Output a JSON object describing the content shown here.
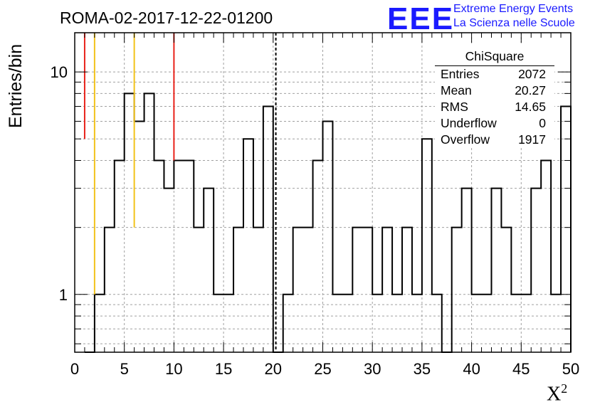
{
  "chart_data": {
    "type": "histogram",
    "title": "ROMA-02-2017-12-22-01200",
    "xlabel": "X",
    "xlabel_superscript": "2",
    "ylabel": "Entries/bin",
    "xlim": [
      0,
      50
    ],
    "ylim": [
      0.55,
      15
    ],
    "y_scale": "log",
    "grid": true,
    "x_ticks": [
      "0",
      "5",
      "10",
      "15",
      "20",
      "25",
      "30",
      "35",
      "40",
      "45",
      "50"
    ],
    "y_ticks": [
      "1",
      "10"
    ],
    "bin_width": 1,
    "bin_low_edges": [
      1,
      2,
      3,
      4,
      5,
      6,
      7,
      8,
      9,
      10,
      11,
      12,
      13,
      14,
      15,
      16,
      17,
      18,
      19,
      20,
      21,
      22,
      23,
      24,
      25,
      26,
      27,
      28,
      29,
      30,
      31,
      32,
      33,
      34,
      35,
      36,
      37,
      38,
      39,
      40,
      41,
      42,
      43,
      44,
      45,
      46,
      47,
      48,
      49
    ],
    "values": [
      0,
      1,
      2,
      4,
      8,
      6,
      8,
      4,
      3,
      4,
      4,
      2,
      3,
      1,
      1,
      2,
      5,
      2,
      7,
      0,
      1,
      2,
      2,
      4,
      6,
      1,
      1,
      2,
      2,
      1,
      2,
      1,
      2,
      1,
      5,
      1,
      0,
      2,
      3,
      1,
      1,
      3,
      2,
      1,
      1,
      3,
      4,
      1,
      7
    ],
    "vertical_lines": [
      {
        "x": 1,
        "y_from": 5,
        "color": "#e8221a",
        "style": "solid"
      },
      {
        "x": 2,
        "y_from": 1,
        "color": "#f2c21a",
        "style": "solid"
      },
      {
        "x": 6,
        "y_from": 2,
        "color": "#f2c21a",
        "style": "solid"
      },
      {
        "x": 10,
        "y_from": 4,
        "color": "#e8221a",
        "style": "solid"
      },
      {
        "x": 20.27,
        "y_from": 0,
        "color": "#000000",
        "style": "dashed"
      }
    ],
    "stats_box": {
      "title": "ChiSquare",
      "rows": [
        {
          "label": "Entries",
          "value": "2072"
        },
        {
          "label": "Mean",
          "value": "20.27"
        },
        {
          "label": "RMS",
          "value": "14.65"
        },
        {
          "label": "Underflow",
          "value": "0"
        },
        {
          "label": "Overflow",
          "value": "1917"
        }
      ]
    }
  },
  "logo": {
    "mark": "EEE",
    "line1": "Extreme Energy Events",
    "line2": "La Scienza nelle Scuole",
    "color": "#1a1aff"
  }
}
